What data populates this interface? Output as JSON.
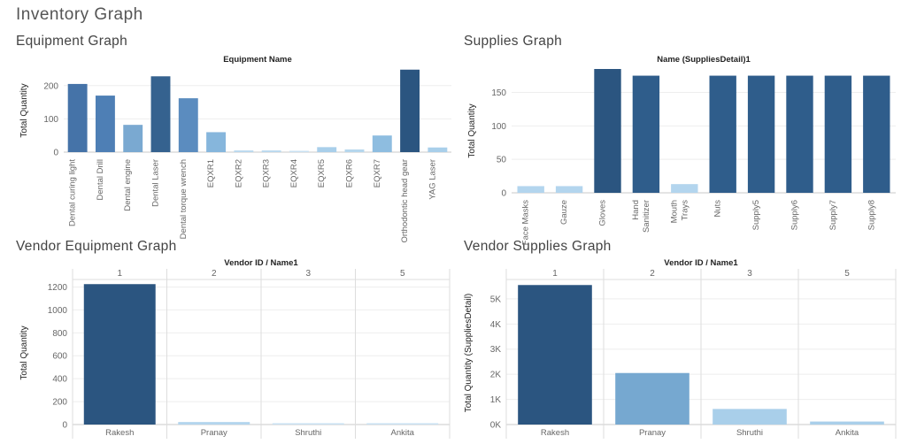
{
  "page_title": "Inventory Graph",
  "panels": {
    "equipment": {
      "title": "Equipment Graph"
    },
    "supplies": {
      "title": "Supplies Graph"
    },
    "vendor_equipment": {
      "title": "Vendor Equipment Graph"
    },
    "vendor_supplies": {
      "title": "Vendor Supplies Graph"
    }
  },
  "chart_data": [
    {
      "id": "equipment",
      "type": "bar",
      "header": "Equipment Name",
      "ylabel": "Total Quantity",
      "ylim": [
        0,
        250
      ],
      "yticks": [
        0,
        100,
        200
      ],
      "ytick_labels": [
        "0",
        "100",
        "200"
      ],
      "categories": [
        "Dental curing light",
        "Dental Drill",
        "Dental engine",
        "Dental Laser",
        "Dental torque wrench",
        "EQXR1",
        "EQXR2",
        "EQXR3",
        "EQXR4",
        "EQXR5",
        "EQXR6",
        "EQXR7",
        "Orthodontic head gear",
        "YAG Laser"
      ],
      "values": [
        205,
        170,
        82,
        228,
        162,
        60,
        5,
        5,
        1,
        15,
        8,
        50,
        248,
        14
      ],
      "colors": [
        "#4573a8",
        "#4e7fb5",
        "#7aa9d1",
        "#35628f",
        "#5b8cbf",
        "#86b6dc",
        "#b9d8ee",
        "#b9d8ee",
        "#c9e1f2",
        "#a9cfea",
        "#b5d6ed",
        "#8ebde0",
        "#2b5580",
        "#a9cfea"
      ]
    },
    {
      "id": "supplies",
      "type": "bar",
      "header": "Name (SuppliesDetail)1",
      "ylabel": "Total Quantity",
      "ylim": [
        0,
        185
      ],
      "yticks": [
        0,
        50,
        100,
        150
      ],
      "ytick_labels": [
        "0",
        "50",
        "100",
        "150"
      ],
      "categories": [
        "Face Masks",
        "Gauze",
        "Gloves",
        "Hand Sanitizer",
        "Mouth Trays",
        "Nuts",
        "Supply5",
        "Supply6",
        "Supply7",
        "Supply8"
      ],
      "category_lines": [
        [
          "Face Masks"
        ],
        [
          "Gauze"
        ],
        [
          "Gloves"
        ],
        [
          "Hand",
          "Sanitizer"
        ],
        [
          "Mouth",
          "Trays"
        ],
        [
          "Nuts"
        ],
        [
          "Supply5"
        ],
        [
          "Supply6"
        ],
        [
          "Supply7"
        ],
        [
          "Supply8"
        ]
      ],
      "values": [
        10,
        10,
        185,
        175,
        13,
        175,
        175,
        175,
        175,
        175
      ],
      "colors": [
        "#b3d5ee",
        "#b3d5ee",
        "#2b5580",
        "#2f5d8b",
        "#b3d5ee",
        "#2f5d8b",
        "#2f5d8b",
        "#2f5d8b",
        "#2f5d8b",
        "#2f5d8b"
      ]
    },
    {
      "id": "vendor_equipment",
      "type": "bar",
      "header": "Vendor ID / Name1",
      "ylabel": "Total Quantity",
      "ylim": [
        0,
        1250
      ],
      "yticks": [
        0,
        200,
        400,
        600,
        800,
        1000,
        1200
      ],
      "ytick_labels": [
        "0",
        "200",
        "400",
        "600",
        "800",
        "1000",
        "1200"
      ],
      "column_ids": [
        "1",
        "2",
        "3",
        "5"
      ],
      "categories": [
        "Rakesh",
        "Pranay",
        "Shruthi",
        "Ankita"
      ],
      "values": [
        1225,
        22,
        3,
        5
      ],
      "colors": [
        "#2b5580",
        "#b3d5ee",
        "#c9e1f2",
        "#c9e1f2"
      ]
    },
    {
      "id": "vendor_supplies",
      "type": "bar",
      "header": "Vendor ID / Name1",
      "ylabel": "Total Quantity (SuppliesDetail)",
      "ylim": [
        0,
        5700
      ],
      "yticks": [
        0,
        1000,
        2000,
        3000,
        4000,
        5000
      ],
      "ytick_labels": [
        "0K",
        "1K",
        "2K",
        "3K",
        "4K",
        "5K"
      ],
      "column_ids": [
        "1",
        "2",
        "3",
        "5"
      ],
      "categories": [
        "Rakesh",
        "Pranay",
        "Shruthi",
        "Ankita"
      ],
      "values": [
        5550,
        2050,
        620,
        120
      ],
      "colors": [
        "#2b5580",
        "#76a8d0",
        "#a9cfea",
        "#a9cfea"
      ]
    }
  ]
}
